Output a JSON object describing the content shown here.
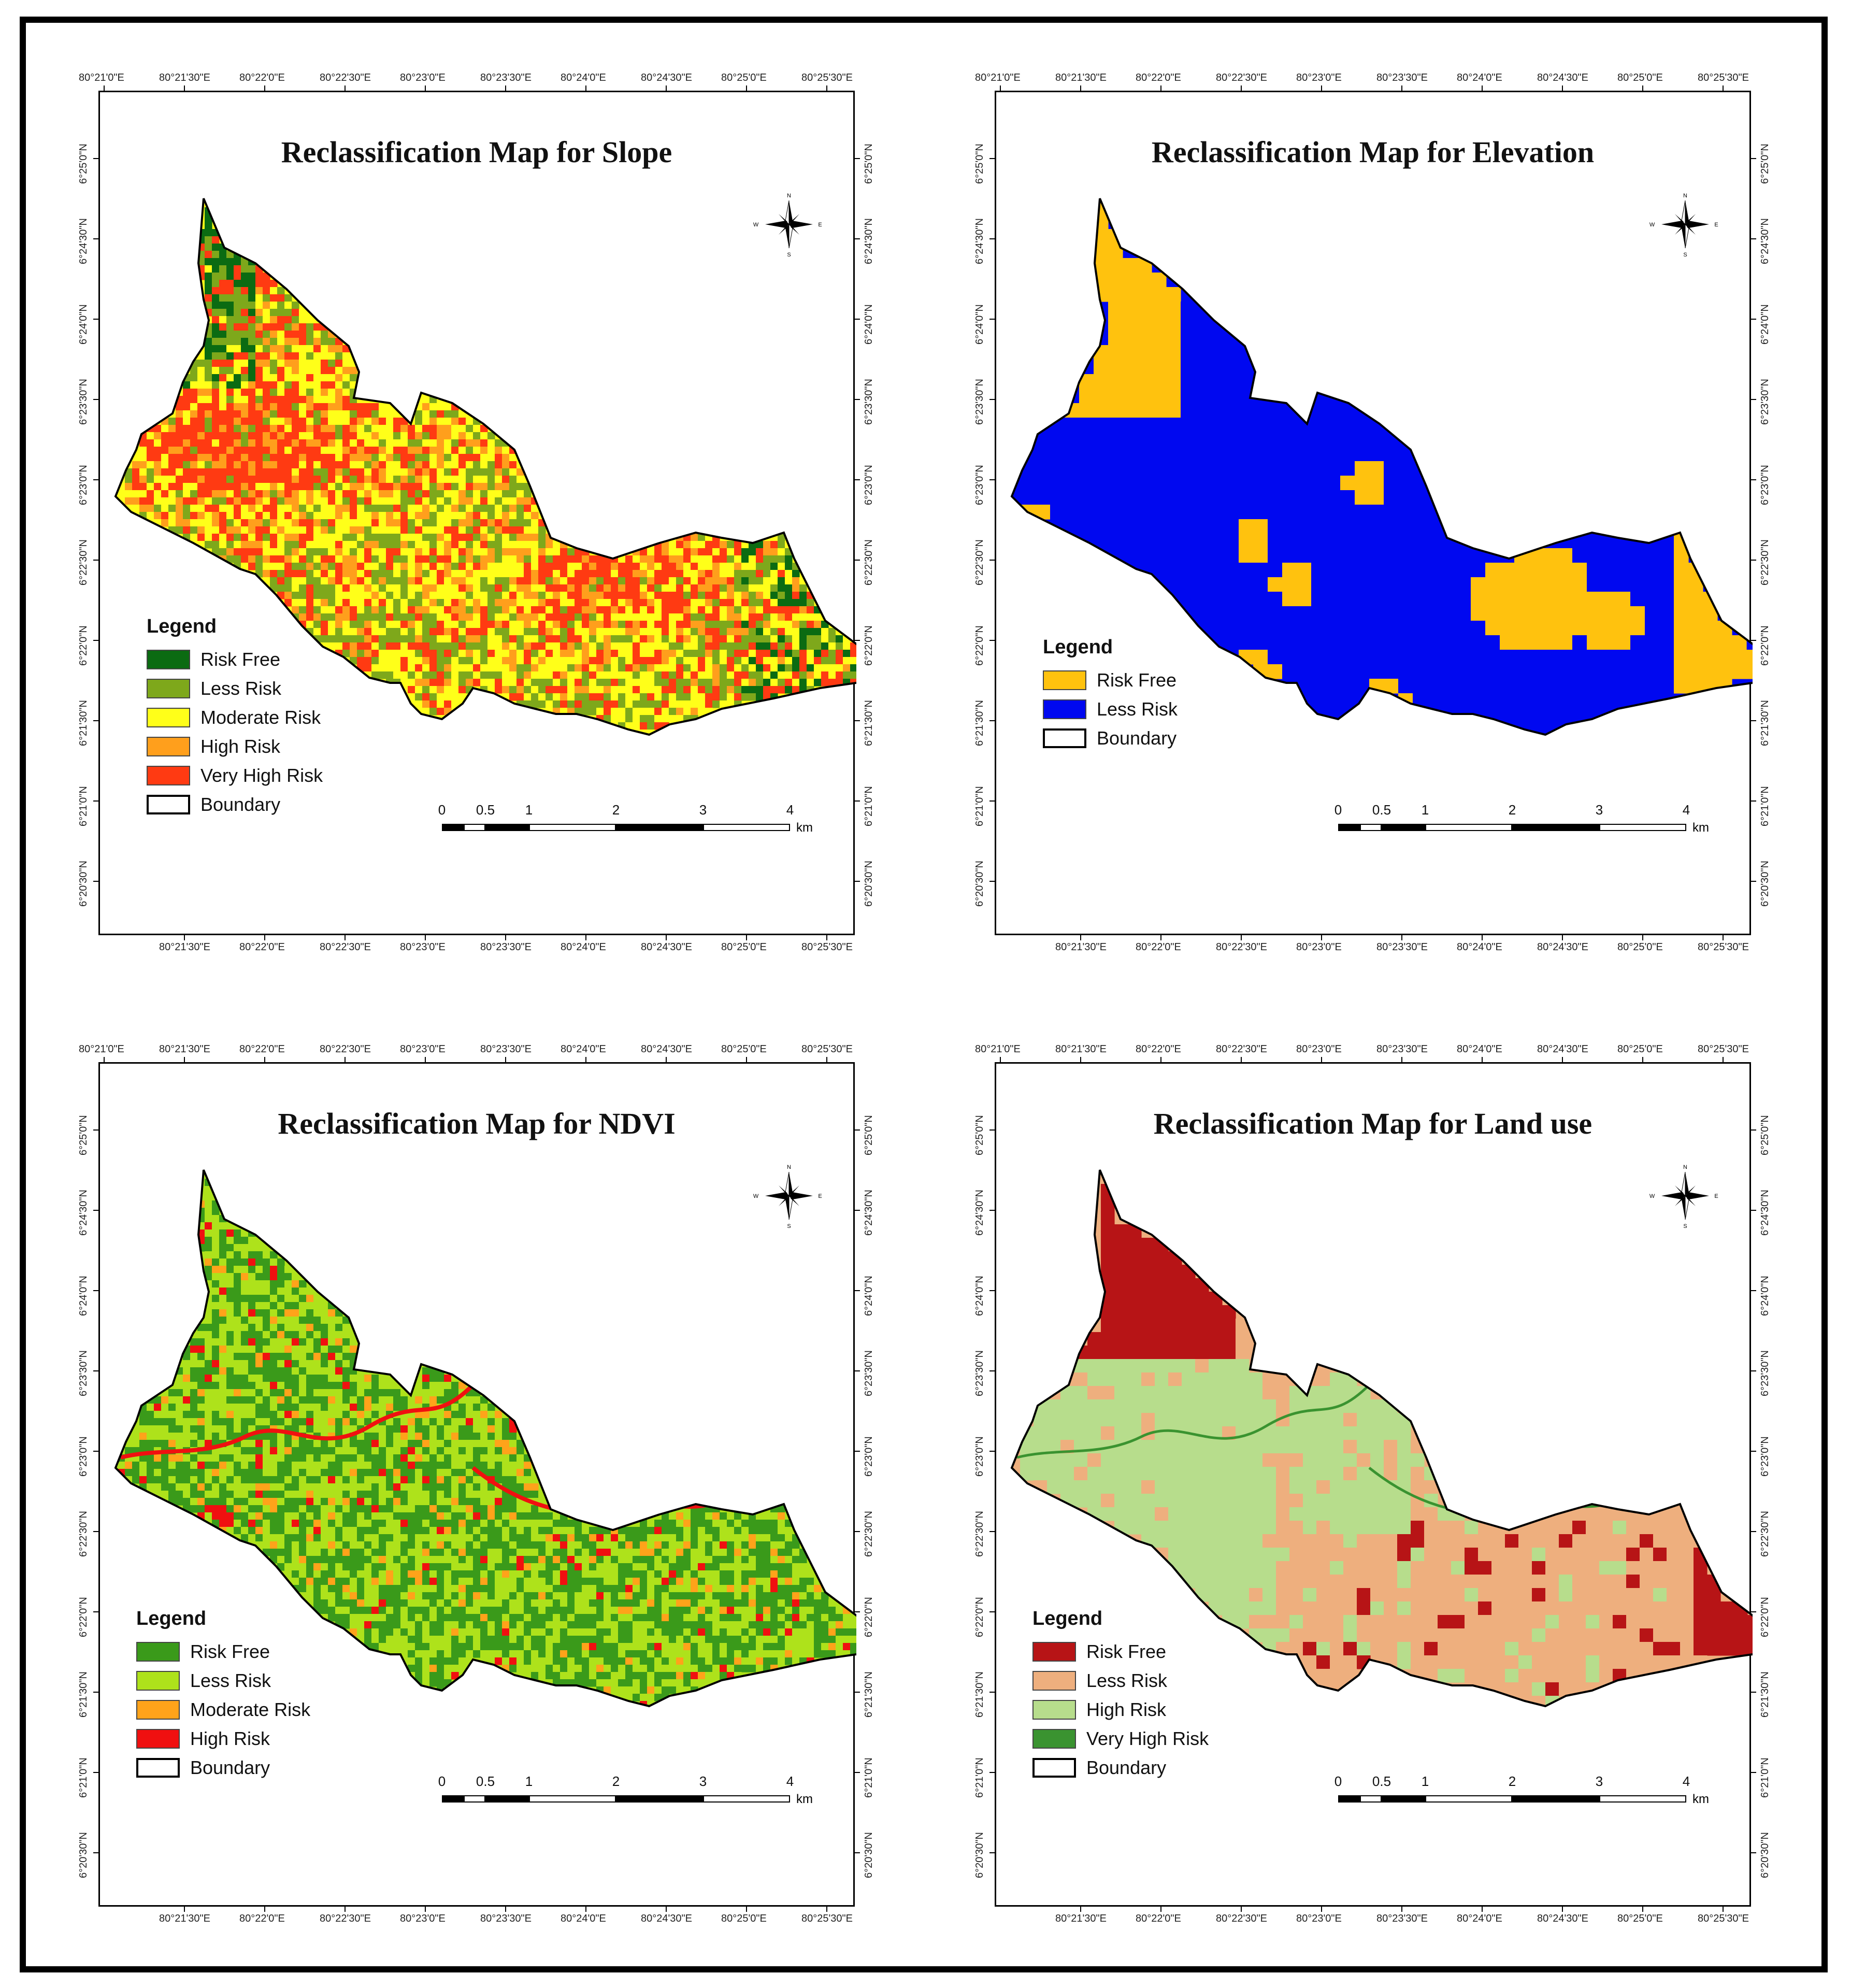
{
  "x_ticks": [
    "80°21'0\"E",
    "80°21'30\"E",
    "80°22'0\"E",
    "80°22'30\"E",
    "80°23'0\"E",
    "80°23'30\"E",
    "80°24'0\"E",
    "80°24'30\"E",
    "80°25'0\"E",
    "80°25'30\"E"
  ],
  "x_ticks_bottom": [
    "80°21'30\"E",
    "80°22'0\"E",
    "80°22'30\"E",
    "80°23'0\"E",
    "80°23'30\"E",
    "80°24'0\"E",
    "80°24'30\"E",
    "80°25'0\"E",
    "80°25'30\"E"
  ],
  "y_ticks": [
    "6°25'0\"N",
    "6°24'30\"N",
    "6°24'0\"N",
    "6°23'30\"N",
    "6°23'0\"N",
    "6°22'30\"N",
    "6°22'0\"N",
    "6°21'30\"N",
    "6°21'0\"N",
    "6°20'30\"N"
  ],
  "scale": {
    "labels": [
      "0",
      "0.5",
      "1",
      "2",
      "3",
      "4"
    ],
    "unit": "km"
  },
  "compass_letters": {
    "n": "N",
    "s": "S",
    "e": "E",
    "w": "W"
  },
  "legend_title": "Legend",
  "boundary_label": "Boundary",
  "maps": [
    {
      "title": "Reclassification Map for Slope",
      "legend": [
        {
          "label": "Risk Free",
          "color": "#0b6b12"
        },
        {
          "label": "Less Risk",
          "color": "#7ea81b"
        },
        {
          "label": "Moderate Risk",
          "color": "#ffff19"
        },
        {
          "label": "High Risk",
          "color": "#ff9f1c"
        },
        {
          "label": "Very High Risk",
          "color": "#ff3a12"
        }
      ]
    },
    {
      "title": "Reclassification Map for Elevation",
      "legend": [
        {
          "label": "Risk Free",
          "color": "#ffc20e"
        },
        {
          "label": "Less Risk",
          "color": "#0008f0"
        }
      ]
    },
    {
      "title": "Reclassification Map for NDVI",
      "legend": [
        {
          "label": "Risk Free",
          "color": "#3a9a1a"
        },
        {
          "label": "Less Risk",
          "color": "#aee21b"
        },
        {
          "label": "Moderate Risk",
          "color": "#ffa31a"
        },
        {
          "label": "High Risk",
          "color": "#f01010"
        }
      ]
    },
    {
      "title": "Reclassification Map for Land use",
      "legend": [
        {
          "label": "Risk Free",
          "color": "#b71416"
        },
        {
          "label": "Less Risk",
          "color": "#eeaf7e"
        },
        {
          "label": "High Risk",
          "color": "#b7dd8c"
        },
        {
          "label": "Very High Risk",
          "color": "#3a9330"
        }
      ]
    }
  ]
}
